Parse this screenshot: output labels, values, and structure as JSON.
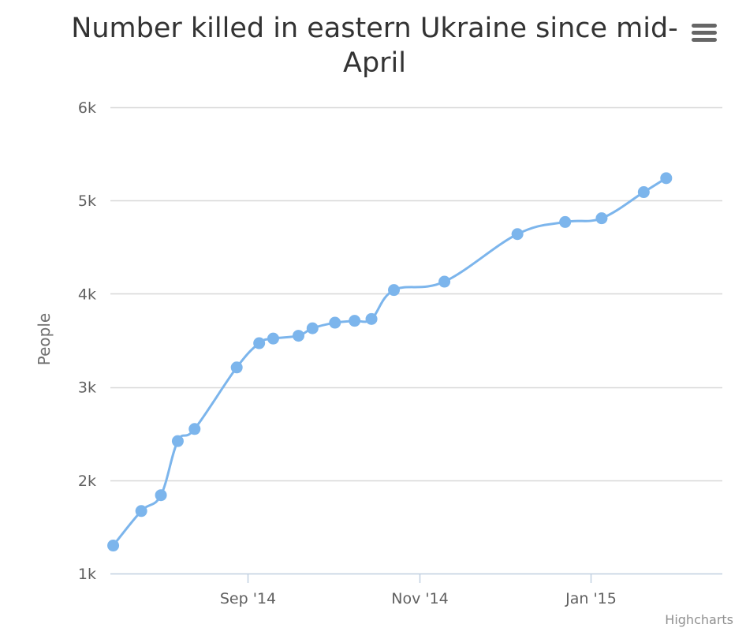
{
  "chart_data": {
    "type": "line",
    "title": "Number killed in eastern Ukraine since mid-April",
    "ylabel": "People",
    "xlabel": "",
    "ylim": [
      1000,
      6000
    ],
    "y_ticks": [
      1000,
      2000,
      3000,
      4000,
      5000,
      6000
    ],
    "y_tick_labels": [
      "1k",
      "2k",
      "3k",
      "4k",
      "5k",
      "6k"
    ],
    "xlim": [
      "2014-07-14",
      "2015-02-17"
    ],
    "x_ticks": [
      {
        "date": "2014-09-01",
        "label": "Sep '14"
      },
      {
        "date": "2014-11-01",
        "label": "Nov '14"
      },
      {
        "date": "2015-01-01",
        "label": "Jan '15"
      }
    ],
    "grid": true,
    "legend": false,
    "series": [
      {
        "name": "People",
        "color": "#7cb5ec",
        "points": [
          {
            "date": "2014-07-15",
            "value": 1300
          },
          {
            "date": "2014-07-25",
            "value": 1670
          },
          {
            "date": "2014-08-01",
            "value": 1840
          },
          {
            "date": "2014-08-07",
            "value": 2420
          },
          {
            "date": "2014-08-13",
            "value": 2550
          },
          {
            "date": "2014-08-28",
            "value": 3210
          },
          {
            "date": "2014-09-05",
            "value": 3470
          },
          {
            "date": "2014-09-10",
            "value": 3520
          },
          {
            "date": "2014-09-19",
            "value": 3550
          },
          {
            "date": "2014-09-24",
            "value": 3630
          },
          {
            "date": "2014-10-02",
            "value": 3690
          },
          {
            "date": "2014-10-09",
            "value": 3710
          },
          {
            "date": "2014-10-15",
            "value": 3730
          },
          {
            "date": "2014-10-23",
            "value": 4040
          },
          {
            "date": "2014-11-10",
            "value": 4130
          },
          {
            "date": "2014-12-06",
            "value": 4640
          },
          {
            "date": "2014-12-23",
            "value": 4770
          },
          {
            "date": "2015-01-05",
            "value": 4810
          },
          {
            "date": "2015-01-20",
            "value": 5090
          },
          {
            "date": "2015-01-28",
            "value": 5240
          }
        ]
      }
    ]
  },
  "credits": "Highcharts",
  "menu_icon": "hamburger-menu-icon"
}
